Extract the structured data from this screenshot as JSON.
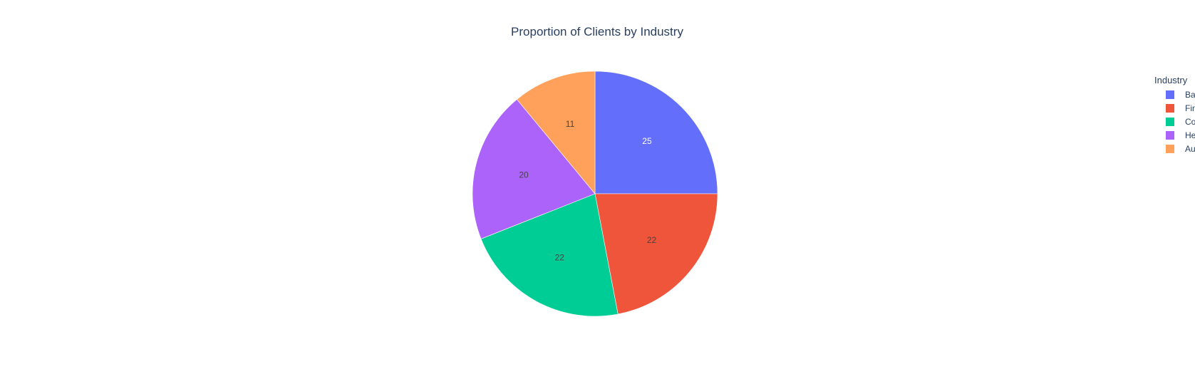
{
  "chart_data": {
    "type": "pie",
    "title": "Proportion of Clients by Industry",
    "legend_title": "Industry",
    "legend_placement": "right",
    "labels": [
      "Banking",
      "Finance",
      "Consulting",
      "Healthcare",
      "Automotive"
    ],
    "values": [
      25,
      22,
      22,
      20,
      11
    ],
    "colors": [
      "#636efa",
      "#EF553B",
      "#00cc96",
      "#ab63fa",
      "#FFA15A"
    ],
    "text_colors": [
      "#ffffff",
      "#444444",
      "#444444",
      "#444444",
      "#444444"
    ],
    "direction": "clockwise",
    "start_angle_deg": 90
  }
}
